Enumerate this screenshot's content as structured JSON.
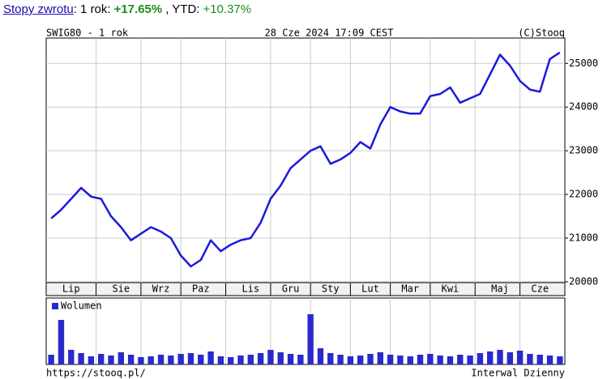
{
  "header": {
    "link": "Stopy zwrotu",
    "period": ": 1 rok:",
    "period_return": "+17.65%",
    "ytd_label": ", YTD:",
    "ytd_return": "+10.37%"
  },
  "chart_data": [
    {
      "type": "line",
      "title": "SWIG80 - 1 rok",
      "subtitle": "28 Cze 2024 17:09 CEST",
      "source": "(C)Stooq",
      "categories": [
        null,
        null,
        "Lip",
        null,
        null,
        null,
        null,
        "Sie",
        null,
        null,
        null,
        "Wrz",
        null,
        null,
        null,
        "Paz",
        null,
        null,
        null,
        null,
        "Lis",
        null,
        null,
        null,
        "Gru",
        null,
        null,
        null,
        "Sty",
        null,
        null,
        null,
        "Lut",
        null,
        null,
        null,
        "Mar",
        null,
        null,
        null,
        "Kwi",
        null,
        null,
        null,
        null,
        "Maj",
        null,
        null,
        null,
        "Cze",
        null,
        null
      ],
      "color": "#1a1adb",
      "values": [
        21450,
        21650,
        21900,
        22150,
        21950,
        21900,
        21500,
        21250,
        20950,
        21100,
        21250,
        21150,
        21000,
        20600,
        20350,
        20500,
        20950,
        20700,
        20850,
        20950,
        21000,
        21350,
        21900,
        22200,
        22600,
        22800,
        23000,
        23100,
        22700,
        22800,
        22950,
        23200,
        23050,
        23600,
        24000,
        23900,
        23850,
        23850,
        24250,
        24300,
        24450,
        24100,
        24200,
        24300,
        24750,
        25200,
        24950,
        24600,
        24400,
        24350,
        25100,
        25250
      ],
      "ylim": [
        19980,
        25580
      ],
      "yticks": [
        20000,
        21000,
        22000,
        23000,
        24000,
        25000
      ],
      "grid": true
    },
    {
      "type": "bar",
      "series": [
        {
          "name": "Wolumen",
          "color": "#2a2acc",
          "values": [
            12,
            55,
            18,
            14,
            10,
            13,
            11,
            15,
            12,
            9,
            10,
            12,
            11,
            13,
            14,
            12,
            16,
            10,
            9,
            11,
            12,
            14,
            18,
            15,
            13,
            12,
            62,
            20,
            14,
            12,
            10,
            11,
            13,
            15,
            12,
            11,
            10,
            12,
            13,
            11,
            10,
            12,
            11,
            14,
            16,
            18,
            15,
            17,
            13,
            12,
            11,
            10
          ]
        }
      ],
      "ylim": [
        0,
        82
      ]
    }
  ],
  "footer": {
    "url": "https://stooq.pl/",
    "interval": "Interwal Dzienny"
  }
}
